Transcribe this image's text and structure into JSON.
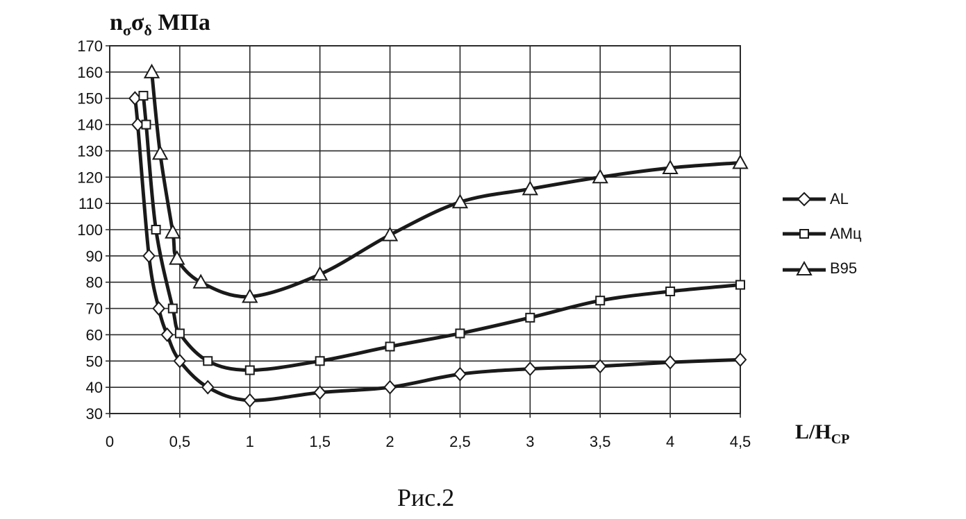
{
  "chart_data": {
    "type": "line",
    "ylabel_main": "n",
    "ylabel_sub1": "σ",
    "ylabel_mid": "σ",
    "ylabel_sub2": "δ",
    "ylabel_unit": "МПа",
    "xlabel_main": "L/H",
    "xlabel_sub": "CP",
    "caption": "Рис.2",
    "xlim": [
      0,
      4.5
    ],
    "ylim": [
      30,
      170
    ],
    "x_ticks": [
      "0",
      "0,5",
      "1",
      "1,5",
      "2",
      "2,5",
      "3",
      "3,5",
      "4",
      "4,5"
    ],
    "y_ticks": [
      "30",
      "40",
      "50",
      "60",
      "70",
      "80",
      "90",
      "100",
      "110",
      "120",
      "130",
      "140",
      "150",
      "160",
      "170"
    ],
    "grid": true,
    "legend_position": "right",
    "series": [
      {
        "name": "AL",
        "marker": "diamond",
        "x": [
          0.18,
          0.2,
          0.28,
          0.35,
          0.41,
          0.5,
          0.7,
          1.0,
          1.5,
          2.0,
          2.5,
          3.0,
          3.5,
          4.0,
          4.5
        ],
        "y": [
          150,
          140,
          90,
          70,
          60,
          50,
          40,
          35,
          38,
          40,
          45,
          47,
          48,
          49.5,
          50.5
        ]
      },
      {
        "name": "АМц",
        "marker": "square",
        "x": [
          0.24,
          0.26,
          0.33,
          0.45,
          0.5,
          0.7,
          1.0,
          1.5,
          2.0,
          2.5,
          3.0,
          3.5,
          4.0,
          4.5
        ],
        "y": [
          151,
          140,
          100,
          70,
          60.5,
          50,
          46.5,
          50,
          55.5,
          60.5,
          66.5,
          73,
          76.5,
          79
        ]
      },
      {
        "name": "B95",
        "marker": "triangle",
        "x": [
          0.3,
          0.36,
          0.45,
          0.48,
          0.65,
          1.0,
          1.5,
          2.0,
          2.5,
          3.0,
          3.5,
          4.0,
          4.5
        ],
        "y": [
          160,
          129,
          99,
          89,
          80,
          74.5,
          83,
          98,
          110.5,
          115.5,
          120,
          123.5,
          125.5
        ]
      }
    ],
    "line_color": "#1a1a1a",
    "grid_color": "#2a2a2a"
  }
}
